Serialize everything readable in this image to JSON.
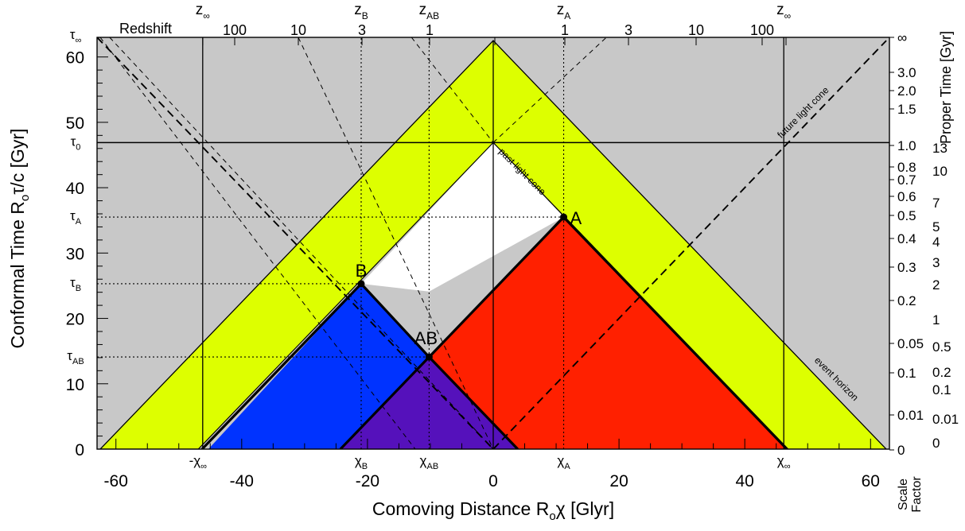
{
  "chart_data": {
    "type": "diagram",
    "xlabel": "Comoving Distance R",
    "xlabel_sub": "o",
    "xlabel_greek": "χ",
    "xlabel_unit": "[Glyr]",
    "ylabel": "Conformal Time R",
    "ylabel_sub": "o",
    "ylabel_greek": "τ/c",
    "ylabel_unit": "[Gyr]",
    "xlim": [
      -63,
      63
    ],
    "ylim": [
      0,
      63
    ],
    "x_ticks": [
      "-60",
      "-40",
      "-20",
      "0",
      "20",
      "40",
      "60"
    ],
    "y_ticks": [
      "0",
      "10",
      "20",
      "30",
      "40",
      "50",
      "60"
    ],
    "top_axis_title": "Redshift",
    "top_left_ticks": [
      "100",
      "10",
      "3",
      "1"
    ],
    "top_right_ticks": [
      "1",
      "3",
      "10",
      "100"
    ],
    "top_markers": [
      {
        "base": "z",
        "sub": "∞"
      },
      {
        "base": "z",
        "sub": "B"
      },
      {
        "base": "z",
        "sub": "AB"
      },
      {
        "base": "z",
        "sub": "A"
      },
      {
        "base": "z",
        "sub": "∞"
      }
    ],
    "left_markers": [
      {
        "base": "τ",
        "sub": "∞"
      },
      {
        "base": "τ",
        "sub": "0"
      },
      {
        "base": "τ",
        "sub": "A"
      },
      {
        "base": "τ",
        "sub": "B"
      },
      {
        "base": "τ",
        "sub": "AB"
      }
    ],
    "bottom_markers": [
      {
        "base": "-χ",
        "sub": "∞"
      },
      {
        "base": "χ",
        "sub": "B"
      },
      {
        "base": "χ",
        "sub": "AB"
      },
      {
        "base": "χ",
        "sub": "A"
      },
      {
        "base": "χ",
        "sub": "∞"
      }
    ],
    "scale_factor_title": [
      "Scale",
      "Factor"
    ],
    "scale_factor_ticks": [
      "∞",
      "3.0",
      "2.0",
      "1.5",
      "1.0",
      "0.8",
      "0.7",
      "0.6",
      "0.5",
      "0.4",
      "0.3",
      "0.2",
      "0.05",
      "0.1",
      "0.01",
      "0"
    ],
    "proper_time_title": "Proper Time [Gyr]",
    "proper_time_ticks": [
      "13",
      "10",
      "7",
      "5",
      "4",
      "3",
      "2",
      "1",
      "0.5",
      "0.2",
      "0.1",
      "0.01",
      "0"
    ],
    "points": [
      {
        "label": "A",
        "x": 11.2,
        "y": 35.5
      },
      {
        "label": "B",
        "x": -21.0,
        "y": 25.3
      },
      {
        "label": "AB",
        "x": -10.2,
        "y": 14.1
      }
    ],
    "apex_top": [
      0,
      62.5
    ],
    "apex_now": [
      0,
      46.9
    ],
    "chi_inf": 46.2,
    "annotations": [
      "past light cone",
      "future light cone",
      "event horizon"
    ],
    "colors": {
      "background": "#c8c8c8",
      "light_cone_band": "#ddff00",
      "observable_region": "#ffffff",
      "region_A": "#ff2000",
      "region_B": "#0033ff",
      "region_AB": "#5511bb"
    }
  }
}
